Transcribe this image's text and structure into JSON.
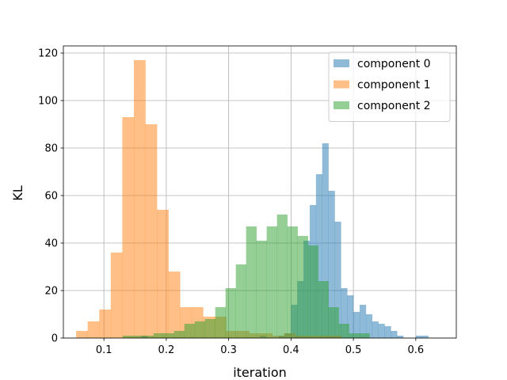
{
  "chart_data": {
    "type": "histogram",
    "xlabel": "iteration",
    "ylabel": "KL",
    "xlim": [
      0.035,
      0.665
    ],
    "ylim": [
      0,
      123
    ],
    "x_ticks": [
      0.1,
      0.2,
      0.3,
      0.4,
      0.5,
      0.6
    ],
    "y_ticks": [
      0,
      20,
      40,
      60,
      80,
      100,
      120
    ],
    "grid": true,
    "legend_position": "top-right",
    "series": [
      {
        "name": "component 0",
        "color": "#1f77b4",
        "alpha": 0.5,
        "bin_width": 0.01,
        "bin_starts": [
          0.16,
          0.17,
          0.18,
          0.19,
          0.2,
          0.21,
          0.22,
          0.23,
          0.24,
          0.25,
          0.26,
          0.27,
          0.28,
          0.29,
          0.3,
          0.31,
          0.32,
          0.33,
          0.34,
          0.35,
          0.36,
          0.37,
          0.38,
          0.39,
          0.4,
          0.41,
          0.42,
          0.43,
          0.44,
          0.45,
          0.46,
          0.47,
          0.48,
          0.49,
          0.5,
          0.51,
          0.52,
          0.53,
          0.54,
          0.55,
          0.56,
          0.57,
          0.58,
          0.59,
          0.6,
          0.61,
          0.62,
          0.63,
          0.64
        ],
        "counts": [
          1,
          0,
          0,
          0,
          0,
          0,
          0,
          0,
          0,
          0,
          0,
          0,
          0,
          0,
          0,
          0,
          0,
          0,
          0,
          1,
          0,
          0,
          1,
          2,
          14,
          24,
          41,
          56,
          69,
          82,
          62,
          49,
          21,
          18,
          11,
          14,
          10,
          7,
          6,
          5,
          3,
          1,
          0,
          0,
          1,
          1,
          0,
          0,
          0
        ]
      },
      {
        "name": "component 1",
        "color": "#ff7f0e",
        "alpha": 0.5,
        "bin_width": 0.0185,
        "bin_starts": [
          0.0555,
          0.074,
          0.0925,
          0.111,
          0.1295,
          0.148,
          0.1665,
          0.185,
          0.2035,
          0.222,
          0.2405,
          0.259,
          0.2775,
          0.296,
          0.3145,
          0.333,
          0.3515,
          0.37,
          0.3885,
          0.407,
          0.4255,
          0.444,
          0.4625
        ],
        "counts": [
          3,
          7,
          12,
          36,
          93,
          117,
          90,
          54,
          28,
          13,
          13,
          9,
          9,
          3,
          3,
          2,
          2,
          1,
          2,
          1,
          1,
          1,
          1
        ]
      },
      {
        "name": "component 2",
        "color": "#2ca02c",
        "alpha": 0.5,
        "bin_width": 0.0165,
        "bin_starts": [
          0.13,
          0.1465,
          0.163,
          0.1795,
          0.196,
          0.2125,
          0.229,
          0.2455,
          0.262,
          0.2785,
          0.295,
          0.3115,
          0.328,
          0.3445,
          0.361,
          0.3775,
          0.394,
          0.4105,
          0.427,
          0.4435,
          0.46,
          0.4765,
          0.493,
          0.5095
        ],
        "counts": [
          1,
          1,
          1,
          2,
          2,
          3,
          6,
          7,
          8,
          13,
          21,
          31,
          47,
          41,
          47,
          52,
          47,
          43,
          39,
          24,
          13,
          6,
          2,
          2
        ]
      }
    ]
  }
}
